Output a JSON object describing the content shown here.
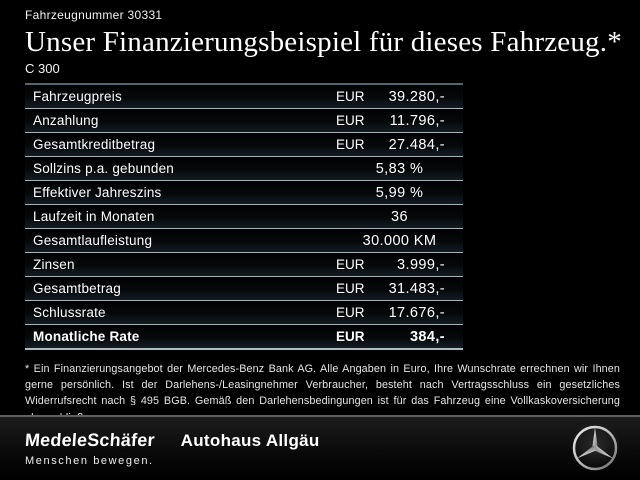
{
  "header": {
    "vehicle_number": "Fahrzeugnummer 30331",
    "title": "Unser Finanzierungsbeispiel für dieses Fahrzeug.*",
    "model": "C 300"
  },
  "table": {
    "rows": [
      {
        "label": "Fahrzeugpreis",
        "currency": "EUR",
        "value": "39.280,-",
        "bold": false
      },
      {
        "label": "Anzahlung",
        "currency": "EUR",
        "value": "11.796,-",
        "bold": false
      },
      {
        "label": "Gesamtkreditbetrag",
        "currency": "EUR",
        "value": "27.484,-",
        "bold": false
      },
      {
        "label": "Sollzins p.a. gebunden",
        "currency": "",
        "value": "5,83 %",
        "bold": false
      },
      {
        "label": "Effektiver Jahreszins",
        "currency": "",
        "value": "5,99 %",
        "bold": false
      },
      {
        "label": "Laufzeit in Monaten",
        "currency": "",
        "value": "36",
        "bold": false
      },
      {
        "label": "Gesamtlaufleistung",
        "currency": "",
        "value": "30.000 KM",
        "bold": false
      },
      {
        "label": "Zinsen",
        "currency": "EUR",
        "value": "3.999,-",
        "bold": false
      },
      {
        "label": "Gesamtbetrag",
        "currency": "EUR",
        "value": "31.483,-",
        "bold": false
      },
      {
        "label": "Schlussrate",
        "currency": "EUR",
        "value": "17.676,-",
        "bold": false
      },
      {
        "label": "Monatliche Rate",
        "currency": "EUR",
        "value": "384,-",
        "bold": true
      }
    ]
  },
  "disclaimer": "* Ein Finanzierungsangebot der Mercedes-Benz Bank AG. Alle Angaben in Euro, Ihre Wunschrate errechnen wir Ihnen gerne persönlich. Ist der Darlehens-/Leasingnehmer Verbraucher, besteht nach Vertragsschluss ein gesetzliches Widerrufsrecht nach § 495 BGB. Gemäß den Darlehensbedingungen ist für das Fahrzeug eine Vollkaskoversicherung abzuschließen.",
  "footer": {
    "dealer_logo_primary": "MedeleSchäfer",
    "dealer_logo_secondary": "Autohaus Allgäu",
    "dealer_tagline": "Menschen bewegen.",
    "brand_icon": "mercedes-star-icon"
  },
  "colors": {
    "background": "#000000",
    "text": "#ffffff",
    "table_separator": "#a5b2ba",
    "table_top_line": "#55656f",
    "footer_divider": "#616161",
    "star_silver_light": "#e9e9e9",
    "star_silver_dark": "#6f6f6f"
  }
}
